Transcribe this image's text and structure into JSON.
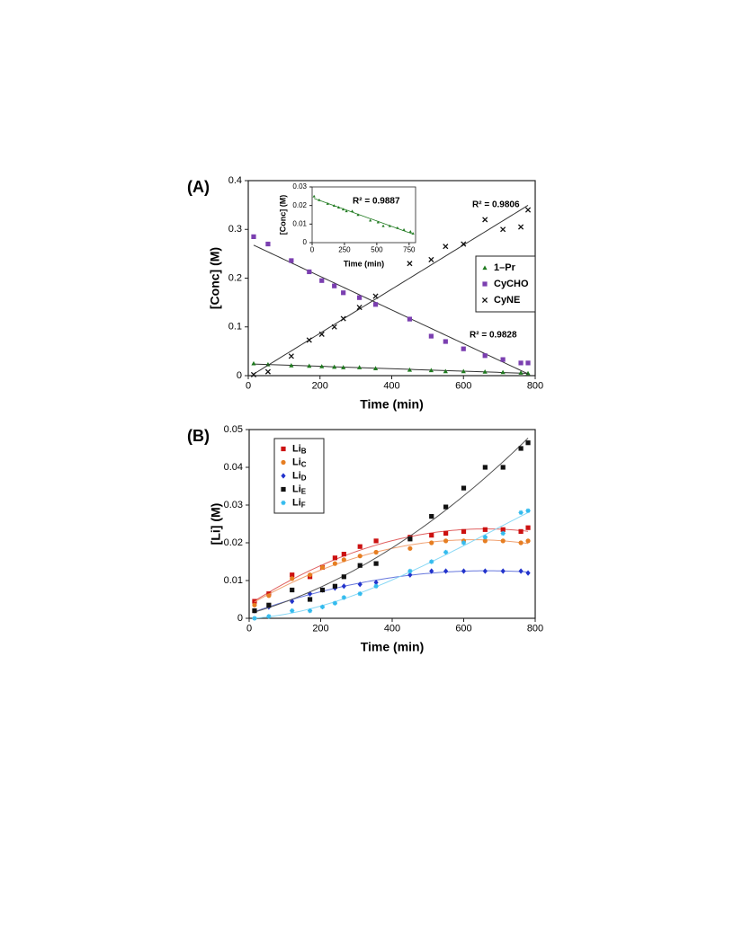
{
  "chart_data": [
    {
      "type": "scatter",
      "panel_label": "(A)",
      "x_label": "Time (min)",
      "y_label": "[Conc] (M)",
      "x": [
        15,
        55,
        120,
        170,
        205,
        240,
        265,
        310,
        355,
        450,
        510,
        550,
        600,
        660,
        710,
        760,
        780
      ],
      "xlim": [
        0,
        800
      ],
      "xticks": [
        0,
        200,
        400,
        600,
        800
      ],
      "ylim": [
        0,
        0.4
      ],
      "yticks": [
        0,
        0.1,
        0.2,
        0.3,
        0.4
      ],
      "legend": "right",
      "series": [
        {
          "name": "1–Pr",
          "color": "#1f7a1f",
          "marker": "triangle",
          "trend": "linear",
          "trend_color": "#333333",
          "values": [
            0.025,
            0.023,
            0.021,
            0.02,
            0.019,
            0.018,
            0.017,
            0.017,
            0.015,
            0.012,
            0.011,
            0.009,
            0.009,
            0.008,
            0.007,
            0.006,
            0.005
          ]
        },
        {
          "name": "CyCHO",
          "color": "#7b3fb0",
          "marker": "square",
          "trend": "linear",
          "trend_color": "#333333",
          "values": [
            0.285,
            0.27,
            0.236,
            0.213,
            0.195,
            0.184,
            0.17,
            0.16,
            0.146,
            0.116,
            0.081,
            0.07,
            0.055,
            0.041,
            0.033,
            0.026,
            0.026
          ]
        },
        {
          "name": "CyNE",
          "color": "#111111",
          "marker": "cross",
          "trend": "linear",
          "trend_color": "#333333",
          "values": [
            0.002,
            0.008,
            0.04,
            0.073,
            0.085,
            0.1,
            0.117,
            0.14,
            0.163,
            0.23,
            0.238,
            0.265,
            0.27,
            0.32,
            0.3,
            0.305,
            0.34
          ]
        }
      ],
      "annotations": [
        "R² = 0.9806",
        "R² = 0.9828"
      ]
    },
    {
      "type": "scatter",
      "x_label": "Time (min)",
      "y_label": "[Conc] (M)",
      "x": [
        15,
        55,
        120,
        170,
        205,
        240,
        265,
        310,
        355,
        450,
        510,
        550,
        600,
        660,
        710,
        760,
        780
      ],
      "xlim": [
        0,
        800
      ],
      "xticks": [
        0,
        250,
        500,
        750
      ],
      "ylim": [
        0,
        0.03
      ],
      "yticks": [
        0,
        0.01,
        0.02,
        0.03
      ],
      "series": [
        {
          "color": "#1f7a1f",
          "marker": "triangle",
          "trend": "linear",
          "trend_color": "#1f7a1f",
          "values": [
            0.025,
            0.023,
            0.021,
            0.02,
            0.019,
            0.018,
            0.017,
            0.017,
            0.015,
            0.012,
            0.011,
            0.009,
            0.009,
            0.008,
            0.007,
            0.006,
            0.005
          ]
        }
      ],
      "annotations": [
        "R² = 0.9887"
      ]
    },
    {
      "type": "scatter",
      "panel_label": "(B)",
      "x_label": "Time (min)",
      "y_label": "[Li] (M)",
      "x": [
        15,
        55,
        120,
        170,
        205,
        240,
        265,
        310,
        355,
        450,
        510,
        550,
        600,
        660,
        710,
        760,
        780
      ],
      "xlim": [
        0,
        800
      ],
      "xticks": [
        0,
        200,
        400,
        600,
        800
      ],
      "ylim": [
        0,
        0.05
      ],
      "yticks": [
        0,
        0.01,
        0.02,
        0.03,
        0.04,
        0.05
      ],
      "legend": "upper left",
      "series": [
        {
          "name": "LiB",
          "color": "#cc1111",
          "marker": "square",
          "trend": "poly2",
          "trend_color": "#e06060",
          "values": [
            0.0045,
            0.0065,
            0.0115,
            0.011,
            0.0135,
            0.016,
            0.017,
            0.019,
            0.0205,
            0.0215,
            0.022,
            0.0225,
            0.023,
            0.0235,
            0.0235,
            0.023,
            0.024
          ]
        },
        {
          "name": "LiC",
          "color": "#e67e22",
          "marker": "circle",
          "trend": "poly2",
          "trend_color": "#f0a070",
          "values": [
            0.0035,
            0.006,
            0.0105,
            0.0115,
            0.0135,
            0.0145,
            0.0155,
            0.0165,
            0.0175,
            0.0185,
            0.02,
            0.0205,
            0.0205,
            0.0205,
            0.0205,
            0.02,
            0.0205
          ]
        },
        {
          "name": "LiD",
          "color": "#2233cc",
          "marker": "diamond",
          "trend": "poly2",
          "trend_color": "#6677dd",
          "values": [
            0.002,
            0.003,
            0.0045,
            0.0065,
            0.0075,
            0.008,
            0.0085,
            0.009,
            0.0095,
            0.0115,
            0.0125,
            0.0125,
            0.0125,
            0.0125,
            0.0125,
            0.0125,
            0.012
          ]
        },
        {
          "name": "LiE",
          "color": "#111111",
          "marker": "square",
          "trend": "poly2",
          "trend_color": "#555555",
          "values": [
            0.002,
            0.0035,
            0.0075,
            0.005,
            0.0075,
            0.0085,
            0.011,
            0.014,
            0.0145,
            0.021,
            0.027,
            0.0295,
            0.0345,
            0.04,
            0.04,
            0.045,
            0.0465
          ]
        },
        {
          "name": "LiF",
          "color": "#33bbee",
          "marker": "star",
          "trend": "poly3",
          "trend_color": "#88d8f5",
          "values": [
            0,
            0.0005,
            0.002,
            0.002,
            0.003,
            0.004,
            0.0055,
            0.0065,
            0.0085,
            0.0125,
            0.015,
            0.0175,
            0.02,
            0.0215,
            0.0225,
            0.028,
            0.0285
          ]
        }
      ]
    }
  ]
}
